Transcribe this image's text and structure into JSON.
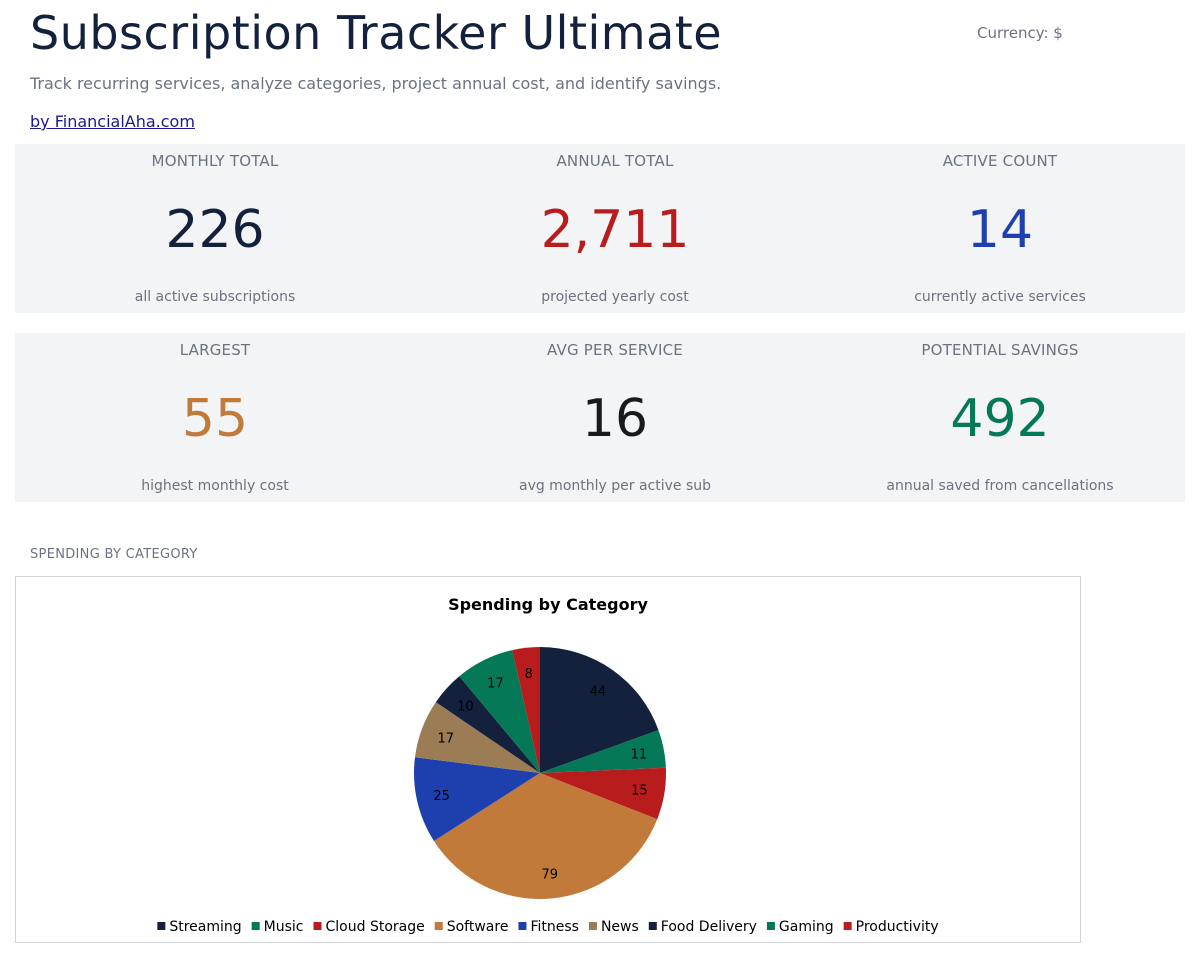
{
  "header": {
    "title": "Subscription Tracker Ultimate",
    "currency": "Currency: $",
    "subtitle": "Track recurring services, analyze categories, project annual cost, and identify savings.",
    "byline": "by FinancialAha.com"
  },
  "kpis": [
    {
      "label": "MONTHLY TOTAL",
      "value": "226",
      "sub": "all active subscriptions",
      "color": "#14213d"
    },
    {
      "label": "ANNUAL TOTAL",
      "value": "2,711",
      "sub": "projected yearly cost",
      "color": "#b91c1c"
    },
    {
      "label": "ACTIVE COUNT",
      "value": "14",
      "sub": "currently active services",
      "color": "#1e40af"
    },
    {
      "label": "LARGEST",
      "value": "55",
      "sub": "highest monthly cost",
      "color": "#c27a3a"
    },
    {
      "label": "AVG PER SERVICE",
      "value": "16",
      "sub": "avg monthly per active sub",
      "color": "#1a1a1a"
    },
    {
      "label": "POTENTIAL SAVINGS",
      "value": "492",
      "sub": "annual saved from cancellations",
      "color": "#047857"
    }
  ],
  "section": {
    "label": "SPENDING BY CATEGORY"
  },
  "chart_data": {
    "type": "pie",
    "title": "Spending by Category",
    "legend_position": "bottom",
    "categories": [
      "Streaming",
      "Music",
      "Cloud Storage",
      "Software",
      "Fitness",
      "News",
      "Food Delivery",
      "Gaming",
      "Productivity"
    ],
    "values": [
      44,
      11,
      15,
      79,
      25,
      17,
      10,
      17,
      8
    ],
    "colors": [
      "#14213d",
      "#047857",
      "#b91c1c",
      "#c27a3a",
      "#1e40af",
      "#9c7c55",
      "#14213d",
      "#047857",
      "#b91c1c"
    ]
  }
}
